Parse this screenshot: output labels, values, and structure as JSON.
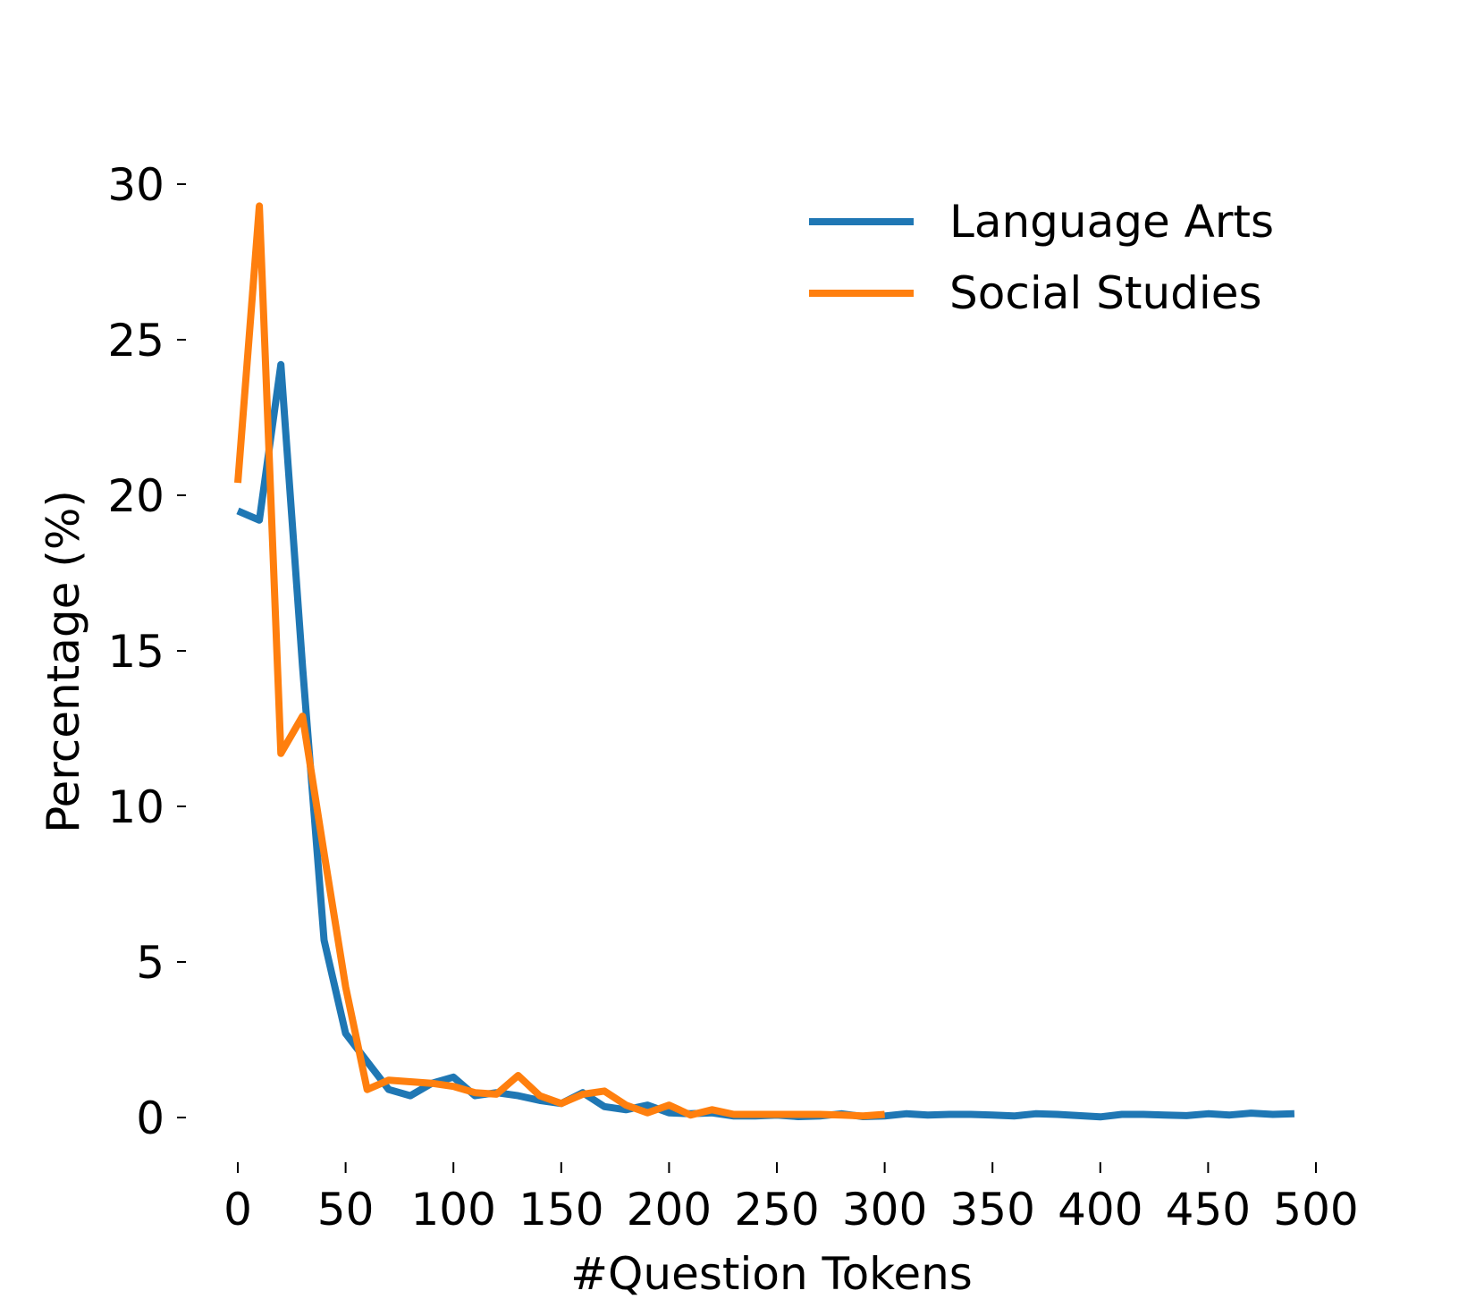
{
  "chart_data": {
    "type": "line",
    "xlabel": "#Question Tokens",
    "ylabel": "Percentage (%)",
    "xlim": [
      -12,
      500
    ],
    "ylim": [
      -1.2,
      31
    ],
    "xticks": [
      0,
      50,
      100,
      150,
      200,
      250,
      300,
      350,
      400,
      450,
      500
    ],
    "yticks": [
      0,
      5,
      10,
      15,
      20,
      25,
      30
    ],
    "grid": false,
    "legend_position": "top-right",
    "series": [
      {
        "name": "Language Arts",
        "color": "#1f77b4",
        "x": [
          0,
          10,
          20,
          30,
          40,
          50,
          60,
          70,
          80,
          90,
          100,
          110,
          120,
          130,
          140,
          150,
          160,
          170,
          180,
          190,
          200,
          210,
          220,
          230,
          240,
          250,
          260,
          270,
          280,
          290,
          300,
          310,
          320,
          330,
          340,
          350,
          360,
          370,
          380,
          390,
          400,
          410,
          420,
          430,
          440,
          450,
          460,
          470,
          480,
          490
        ],
        "values": [
          19.5,
          19.2,
          24.2,
          14.5,
          5.7,
          2.7,
          1.8,
          0.9,
          0.7,
          1.1,
          1.3,
          0.7,
          0.8,
          0.7,
          0.55,
          0.45,
          0.8,
          0.35,
          0.25,
          0.4,
          0.15,
          0.12,
          0.15,
          0.05,
          0.05,
          0.08,
          0.03,
          0.05,
          0.12,
          0.03,
          0.05,
          0.12,
          0.08,
          0.1,
          0.1,
          0.08,
          0.05,
          0.12,
          0.1,
          0.06,
          0.02,
          0.1,
          0.1,
          0.08,
          0.06,
          0.12,
          0.08,
          0.14,
          0.1,
          0.12
        ]
      },
      {
        "name": "Social Studies",
        "color": "#ff7f0e",
        "x": [
          0,
          10,
          20,
          30,
          40,
          50,
          60,
          70,
          80,
          90,
          100,
          110,
          120,
          130,
          140,
          150,
          160,
          170,
          180,
          190,
          200,
          210,
          220,
          230,
          240,
          250,
          260,
          270,
          280,
          290,
          300
        ],
        "values": [
          20.4,
          29.3,
          11.7,
          12.9,
          8.5,
          4.2,
          0.9,
          1.2,
          1.15,
          1.1,
          1.0,
          0.8,
          0.75,
          1.35,
          0.7,
          0.45,
          0.75,
          0.85,
          0.4,
          0.15,
          0.4,
          0.08,
          0.25,
          0.1,
          0.1,
          0.1,
          0.1,
          0.1,
          0.08,
          0.05,
          0.1
        ]
      }
    ]
  }
}
